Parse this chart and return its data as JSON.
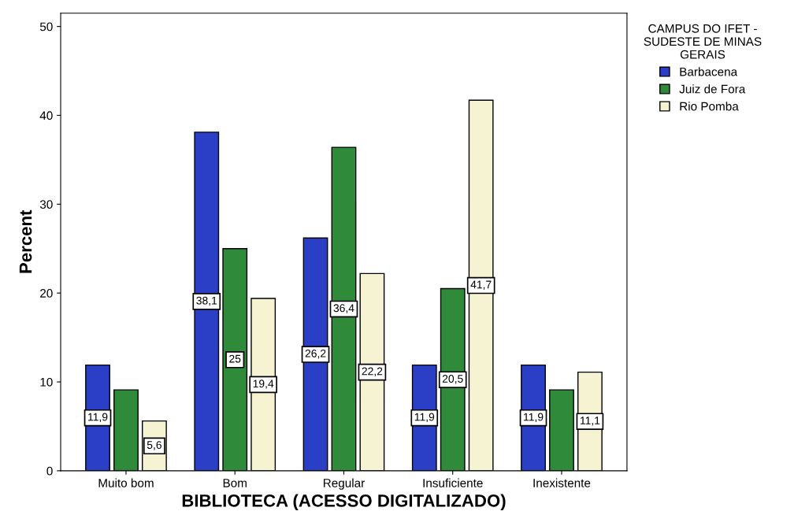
{
  "chart_data": {
    "type": "bar",
    "xlabel": "BIBLIOTECA (ACESSO DIGITALIZADO)",
    "ylabel": "Percent",
    "legend_title": "CAMPUS DO IFET -\nSUDESTE DE MINAS\nGERAIS",
    "categories": [
      "Muito bom",
      "Bom",
      "Regular",
      "Insuficiente",
      "Inexistente"
    ],
    "series": [
      {
        "name": "Barbacena",
        "color": "#2a3fc6",
        "values": [
          11.9,
          38.1,
          26.2,
          11.9,
          11.9
        ],
        "value_labels": [
          "11,9",
          "38,1",
          "26,2",
          "11,9",
          "11,9"
        ]
      },
      {
        "name": "Juiz de Fora",
        "color": "#2f8a3a",
        "values": [
          9.1,
          25,
          36.4,
          20.5,
          9.1
        ],
        "value_labels": [
          null,
          "25",
          "36,4",
          "20,5",
          null
        ]
      },
      {
        "name": "Rio Pomba",
        "color": "#f6f3d2",
        "values": [
          5.6,
          19.4,
          22.2,
          41.7,
          11.1
        ],
        "value_labels": [
          "5,6",
          "19,4",
          "22,2",
          "41,7",
          "11,1"
        ]
      }
    ],
    "ylim": [
      0,
      51.5
    ],
    "yticks": [
      0,
      10,
      20,
      30,
      40,
      50
    ],
    "grid": false,
    "legend": "right"
  }
}
